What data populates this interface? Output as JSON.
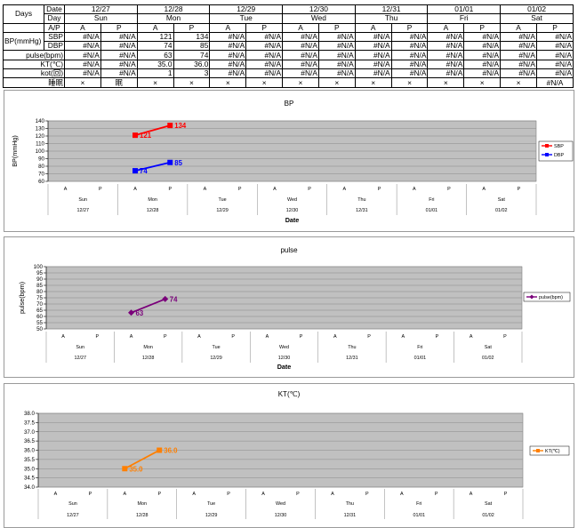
{
  "table": {
    "days_label": "Days",
    "date_label": "Date",
    "day_label": "Day",
    "ap_label": "A/P",
    "dates": [
      "12/27",
      "12/28",
      "12/29",
      "12/30",
      "12/31",
      "01/01",
      "01/02"
    ],
    "days": [
      "Sun",
      "Mon",
      "Tue",
      "Wed",
      "Thu",
      "Fri",
      "Sat"
    ],
    "ap": [
      "A",
      "P",
      "A",
      "P",
      "A",
      "P",
      "A",
      "P",
      "A",
      "P",
      "A",
      "P",
      "A",
      "P"
    ],
    "bp_group_label": "BP(mmHg)",
    "rows": [
      {
        "label": "SBP",
        "values": [
          "#N/A",
          "#N/A",
          "121",
          "134",
          "#N/A",
          "#N/A",
          "#N/A",
          "#N/A",
          "#N/A",
          "#N/A",
          "#N/A",
          "#N/A",
          "#N/A",
          "#N/A"
        ]
      },
      {
        "label": "DBP",
        "values": [
          "#N/A",
          "#N/A",
          "74",
          "85",
          "#N/A",
          "#N/A",
          "#N/A",
          "#N/A",
          "#N/A",
          "#N/A",
          "#N/A",
          "#N/A",
          "#N/A",
          "#N/A"
        ]
      },
      {
        "label": "pulse(bpm)",
        "values": [
          "#N/A",
          "#N/A",
          "63",
          "74",
          "#N/A",
          "#N/A",
          "#N/A",
          "#N/A",
          "#N/A",
          "#N/A",
          "#N/A",
          "#N/A",
          "#N/A",
          "#N/A"
        ]
      },
      {
        "label": "KT(℃)",
        "values": [
          "#N/A",
          "#N/A",
          "35.0",
          "36.0",
          "#N/A",
          "#N/A",
          "#N/A",
          "#N/A",
          "#N/A",
          "#N/A",
          "#N/A",
          "#N/A",
          "#N/A",
          "#N/A"
        ]
      },
      {
        "label": "kot(回)",
        "values": [
          "#N/A",
          "#N/A",
          "1",
          "3",
          "#N/A",
          "#N/A",
          "#N/A",
          "#N/A",
          "#N/A",
          "#N/A",
          "#N/A",
          "#N/A",
          "#N/A",
          "#N/A"
        ]
      },
      {
        "label": "睡眠",
        "values": [
          "×",
          "眠",
          "×",
          "×",
          "×",
          "×",
          "×",
          "×",
          "×",
          "×",
          "×",
          "×",
          "×",
          "#N/A"
        ]
      }
    ]
  },
  "chart_data": [
    {
      "type": "line",
      "title": "BP",
      "ylabel": "BP(mmHg)",
      "xlabel": "Date",
      "ylim": [
        60,
        140
      ],
      "yticks": [
        60,
        70,
        80,
        90,
        100,
        110,
        120,
        130,
        140
      ],
      "x_ap": [
        "A",
        "P",
        "A",
        "P",
        "A",
        "P",
        "A",
        "P",
        "A",
        "P",
        "A",
        "P",
        "A",
        "P"
      ],
      "x_days": [
        "Sun",
        "Mon",
        "Tue",
        "Wed",
        "Thu",
        "Fri",
        "Sat"
      ],
      "x_dates": [
        "12/27",
        "12/28",
        "12/29",
        "12/30",
        "12/31",
        "01/01",
        "01/02"
      ],
      "legend_position": "right",
      "grid": true,
      "series": [
        {
          "name": "SBP",
          "color": "#ff0000",
          "marker": "square",
          "values": [
            null,
            null,
            121,
            134,
            null,
            null,
            null,
            null,
            null,
            null,
            null,
            null,
            null,
            null
          ]
        },
        {
          "name": "DBP",
          "color": "#0000ff",
          "marker": "square",
          "values": [
            null,
            null,
            74,
            85,
            null,
            null,
            null,
            null,
            null,
            null,
            null,
            null,
            null,
            null
          ]
        }
      ]
    },
    {
      "type": "line",
      "title": "pulse",
      "ylabel": "pulse(bpm)",
      "xlabel": "Date",
      "ylim": [
        50,
        100
      ],
      "yticks": [
        50,
        55,
        60,
        65,
        70,
        75,
        80,
        85,
        90,
        95,
        100
      ],
      "x_ap": [
        "A",
        "P",
        "A",
        "P",
        "A",
        "P",
        "A",
        "P",
        "A",
        "P",
        "A",
        "P",
        "A",
        "P"
      ],
      "x_days": [
        "Sun",
        "Mon",
        "Tue",
        "Wed",
        "Thu",
        "Fri",
        "Sat"
      ],
      "x_dates": [
        "12/27",
        "12/28",
        "12/29",
        "12/30",
        "12/31",
        "01/01",
        "01/02"
      ],
      "legend_position": "right",
      "grid": true,
      "series": [
        {
          "name": "pulse(bpm)",
          "color": "#7a007a",
          "marker": "diamond",
          "values": [
            null,
            null,
            63,
            74,
            null,
            null,
            null,
            null,
            null,
            null,
            null,
            null,
            null,
            null
          ]
        }
      ]
    },
    {
      "type": "line",
      "title": "KT(℃)",
      "ylabel": "",
      "xlabel": "",
      "ylim": [
        34.0,
        38.0
      ],
      "yticks": [
        "34.0",
        "34.5",
        "35.0",
        "35.5",
        "36.0",
        "36.5",
        "37.0",
        "37.5",
        "38.0"
      ],
      "x_ap": [
        "A",
        "P",
        "A",
        "P",
        "A",
        "P",
        "A",
        "P",
        "A",
        "P",
        "A",
        "P",
        "A",
        "P"
      ],
      "x_days": [
        "Sun",
        "Mon",
        "Tue",
        "Wed",
        "Thu",
        "Fri",
        "Sat"
      ],
      "x_dates": [
        "12/27",
        "12/28",
        "12/29",
        "12/30",
        "12/31",
        "01/01",
        "01/02"
      ],
      "legend_position": "right",
      "grid": true,
      "series": [
        {
          "name": "KT(℃)",
          "color": "#ff7f00",
          "marker": "square",
          "labels": [
            "35.0",
            "36.0"
          ],
          "values": [
            null,
            null,
            35.0,
            36.0,
            null,
            null,
            null,
            null,
            null,
            null,
            null,
            null,
            null,
            null
          ]
        }
      ]
    }
  ]
}
